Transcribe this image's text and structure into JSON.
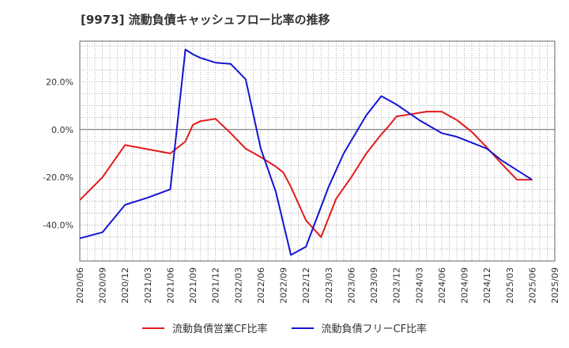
{
  "chart_data": {
    "type": "line",
    "title": "[9973]  流動負債キャッシュフロー比率の推移",
    "xlabel": "",
    "ylabel": "",
    "ylim": [
      -55,
      37
    ],
    "yticks": [
      20,
      0,
      -20,
      -40
    ],
    "ytick_labels": [
      "20.0%",
      "0.0%",
      "-20.0%",
      "-40.0%"
    ],
    "xlim": [
      "2020/06",
      "2025/09"
    ],
    "x_tick_labels": [
      "2020/06",
      "2020/09",
      "2020/12",
      "2021/03",
      "2021/06",
      "2021/09",
      "2021/12",
      "2022/03",
      "2022/06",
      "2022/09",
      "2022/12",
      "2023/03",
      "2023/06",
      "2023/09",
      "2023/12",
      "2024/03",
      "2024/06",
      "2024/09",
      "2024/12",
      "2025/03",
      "2025/06",
      "2025/09"
    ],
    "grid": true,
    "legend_position": "bottom",
    "series": [
      {
        "name": "流動負債営業CF比率",
        "color": "#e31a1c",
        "x": [
          0,
          3,
          6,
          12,
          14,
          15,
          16,
          18,
          20,
          22,
          24,
          26,
          27,
          28,
          30,
          32,
          34,
          36,
          38,
          40,
          41,
          42,
          44,
          46,
          48,
          50,
          52,
          54,
          56,
          58,
          60
        ],
        "values": [
          -29.5,
          -20,
          -6.5,
          -10,
          -5,
          2,
          3.5,
          4.5,
          -1.5,
          -8,
          -11.5,
          -15.5,
          -18,
          -24,
          -38,
          -45,
          -29,
          -20,
          -10,
          -2,
          1.5,
          5.5,
          6.5,
          7.5,
          7.5,
          4,
          -1,
          -7.5,
          -14.5,
          -21,
          -21
        ]
      },
      {
        "name": "流動負債フリーCF比率",
        "color": "#1414d2",
        "x": [
          0,
          3,
          6,
          9,
          12,
          14,
          15,
          16,
          18,
          20,
          22,
          24,
          26,
          28,
          30,
          33,
          35,
          38,
          40,
          42,
          45,
          48,
          50,
          52,
          54,
          56,
          58,
          60
        ],
        "values": [
          -45.5,
          -43,
          -31.5,
          -28.5,
          -25,
          33.5,
          31.5,
          30,
          28,
          27.5,
          21,
          -8,
          -26,
          -52.5,
          -49,
          -24,
          -10,
          6,
          14,
          10.5,
          4,
          -1.5,
          -3,
          -5.5,
          -8,
          -13,
          -17,
          -21
        ]
      }
    ]
  }
}
